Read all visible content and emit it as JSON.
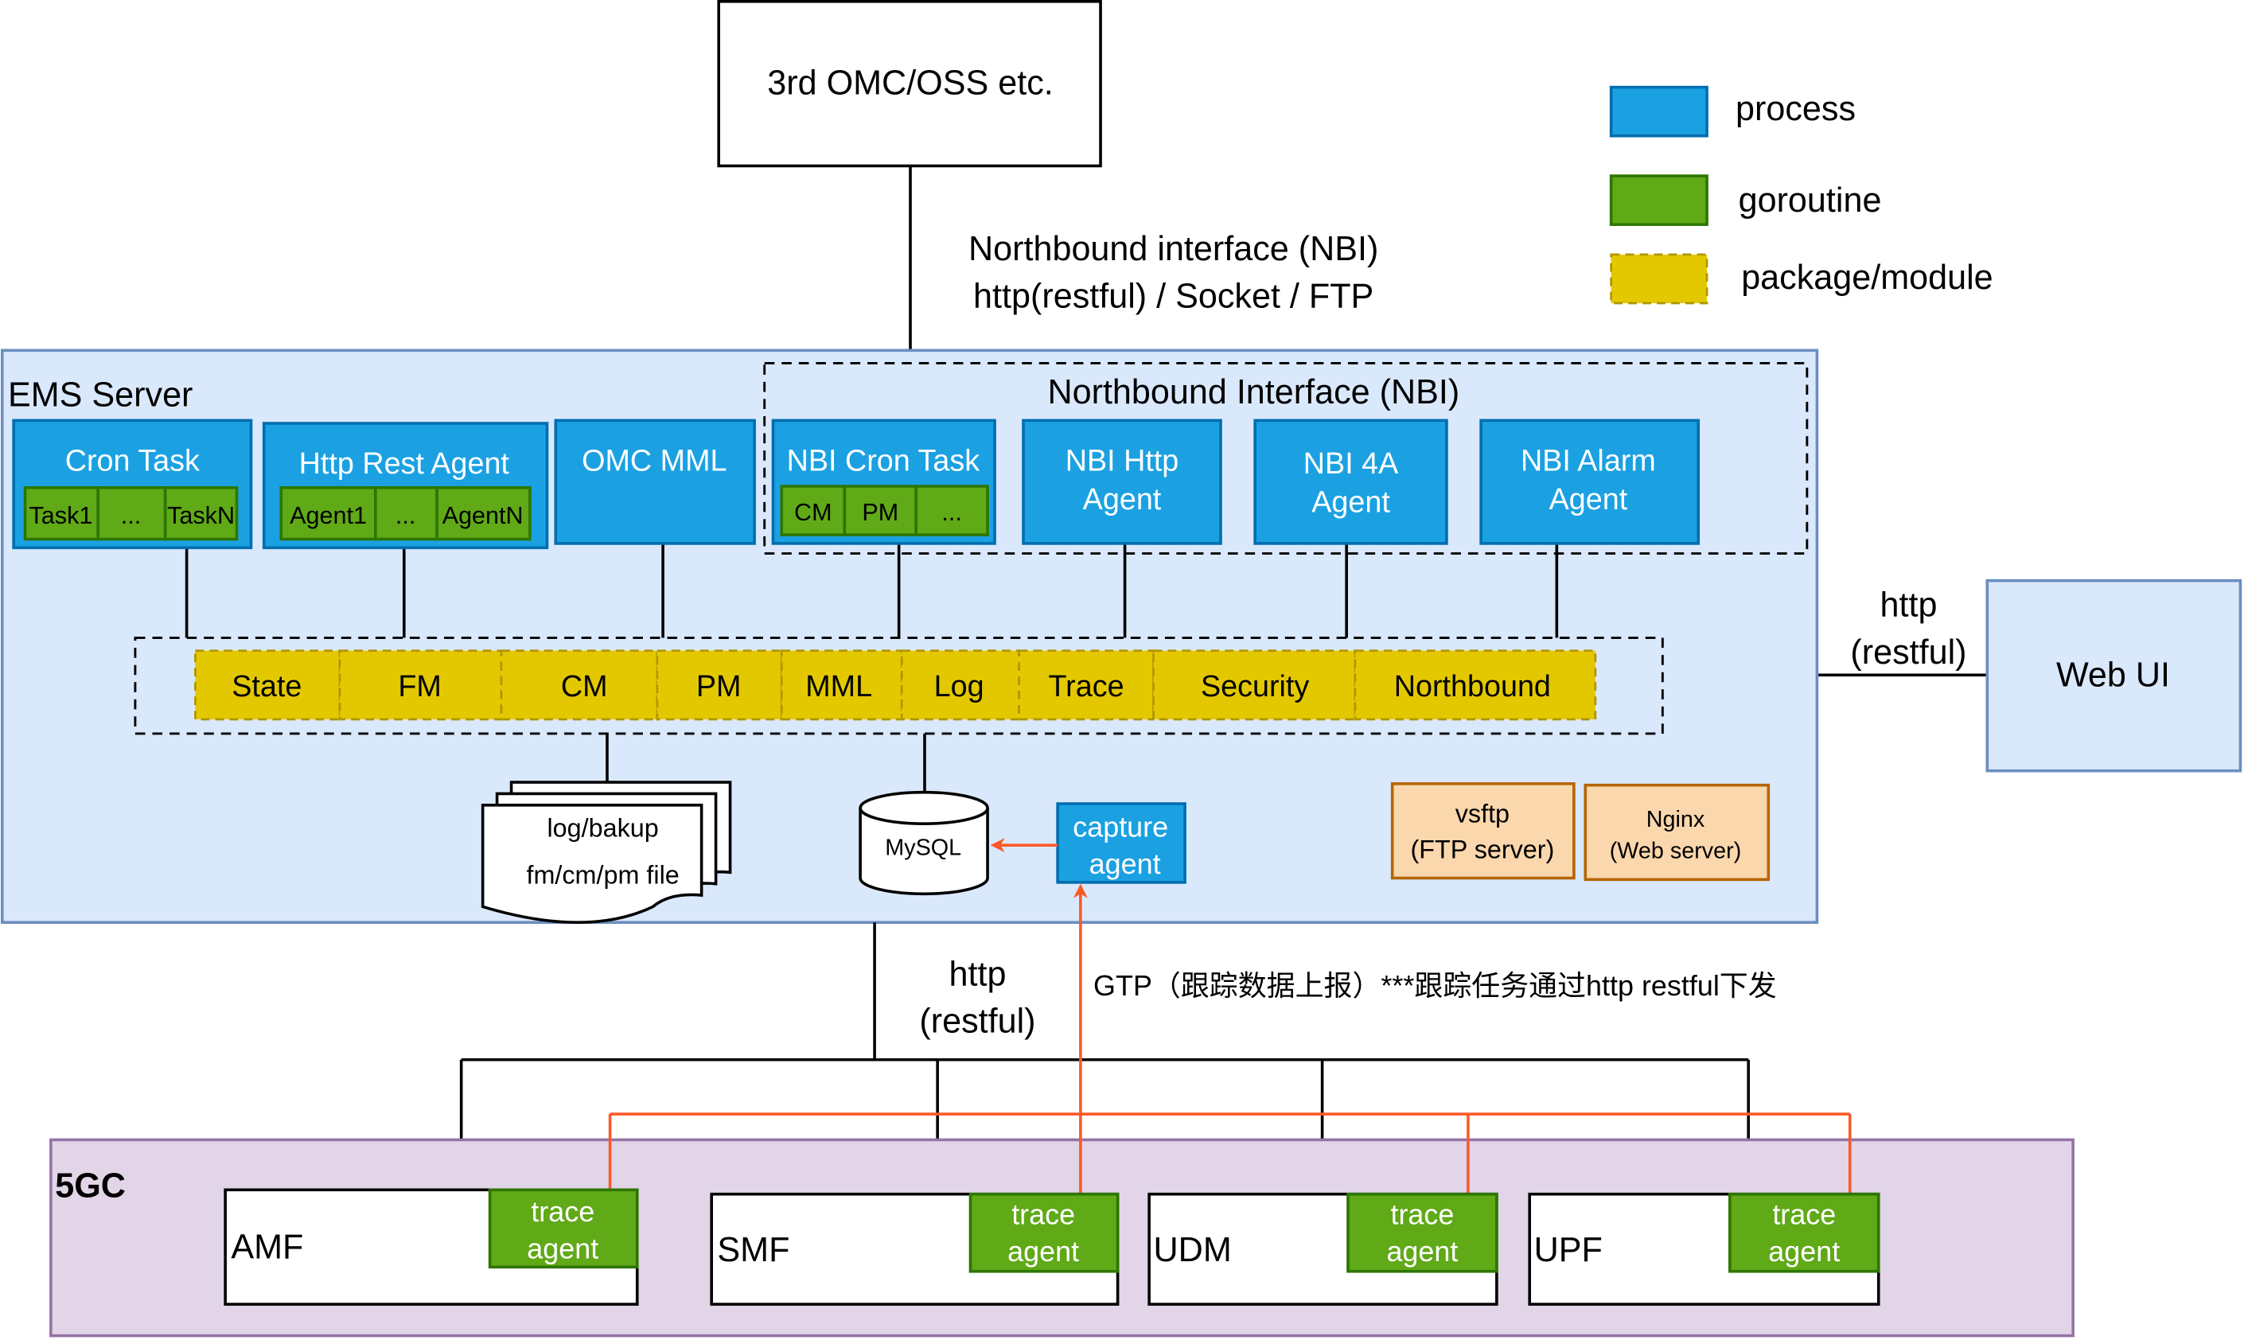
{
  "oss_box": "3rd OMC/OSS etc.",
  "nbi_link": {
    "line1": "Northbound interface (NBI)",
    "line2": "http(restful) / Socket / FTP"
  },
  "legend": [
    {
      "label": "process",
      "color": "#1ba1e2"
    },
    {
      "label": "goroutine",
      "color": "#60a917"
    },
    {
      "label": "package/module",
      "color": "#e3c800"
    }
  ],
  "ems": {
    "title": "EMS Server",
    "nbi_group_title": "Northbound Interface (NBI)",
    "cron_task": {
      "title": "Cron Task",
      "items": [
        "Task1",
        "...",
        "TaskN"
      ]
    },
    "http_rest_agent": {
      "title": "Http Rest Agent",
      "items": [
        "Agent1",
        "...",
        "AgentN"
      ]
    },
    "omc_mml": "OMC MML",
    "nbi_cron_task": {
      "title": "NBI Cron Task",
      "items": [
        "CM",
        "PM",
        "..."
      ]
    },
    "nbi_http_agent": {
      "line1": "NBI Http",
      "line2": "Agent"
    },
    "nbi_4a_agent": {
      "line1": "NBI 4A",
      "line2": "Agent"
    },
    "nbi_alarm_agent": {
      "line1": "NBI Alarm",
      "line2": "Agent"
    },
    "packages": [
      "State",
      "FM",
      "CM",
      "PM",
      "MML",
      "Log",
      "Trace",
      "Security",
      "Northbound"
    ],
    "files": {
      "line1": "log/bakup",
      "line2": "fm/cm/pm file"
    },
    "mysql": "MySQL",
    "capture_agent": {
      "line1": "capture",
      "line2": "agent"
    },
    "vsftp": {
      "line1": "vsftp",
      "line2": "(FTP server)"
    },
    "nginx": {
      "line1": "Nginx",
      "line2": "(Web server)"
    }
  },
  "webui_link": {
    "line1": "http",
    "line2": "(restful)"
  },
  "webui": "Web UI",
  "south_link": {
    "line1": "http",
    "line2": "(restful)"
  },
  "gtp_note": "GTP（跟踪数据上报）***跟踪任务通过http restful下发",
  "fivegc": {
    "title": "5GC",
    "nfs": [
      {
        "name": "AMF",
        "agent1": "trace",
        "agent2": "agent"
      },
      {
        "name": "SMF",
        "agent1": "trace",
        "agent2": "agent"
      },
      {
        "name": "UDM",
        "agent1": "trace",
        "agent2": "agent"
      },
      {
        "name": "UPF",
        "agent1": "trace",
        "agent2": "agent"
      }
    ]
  }
}
